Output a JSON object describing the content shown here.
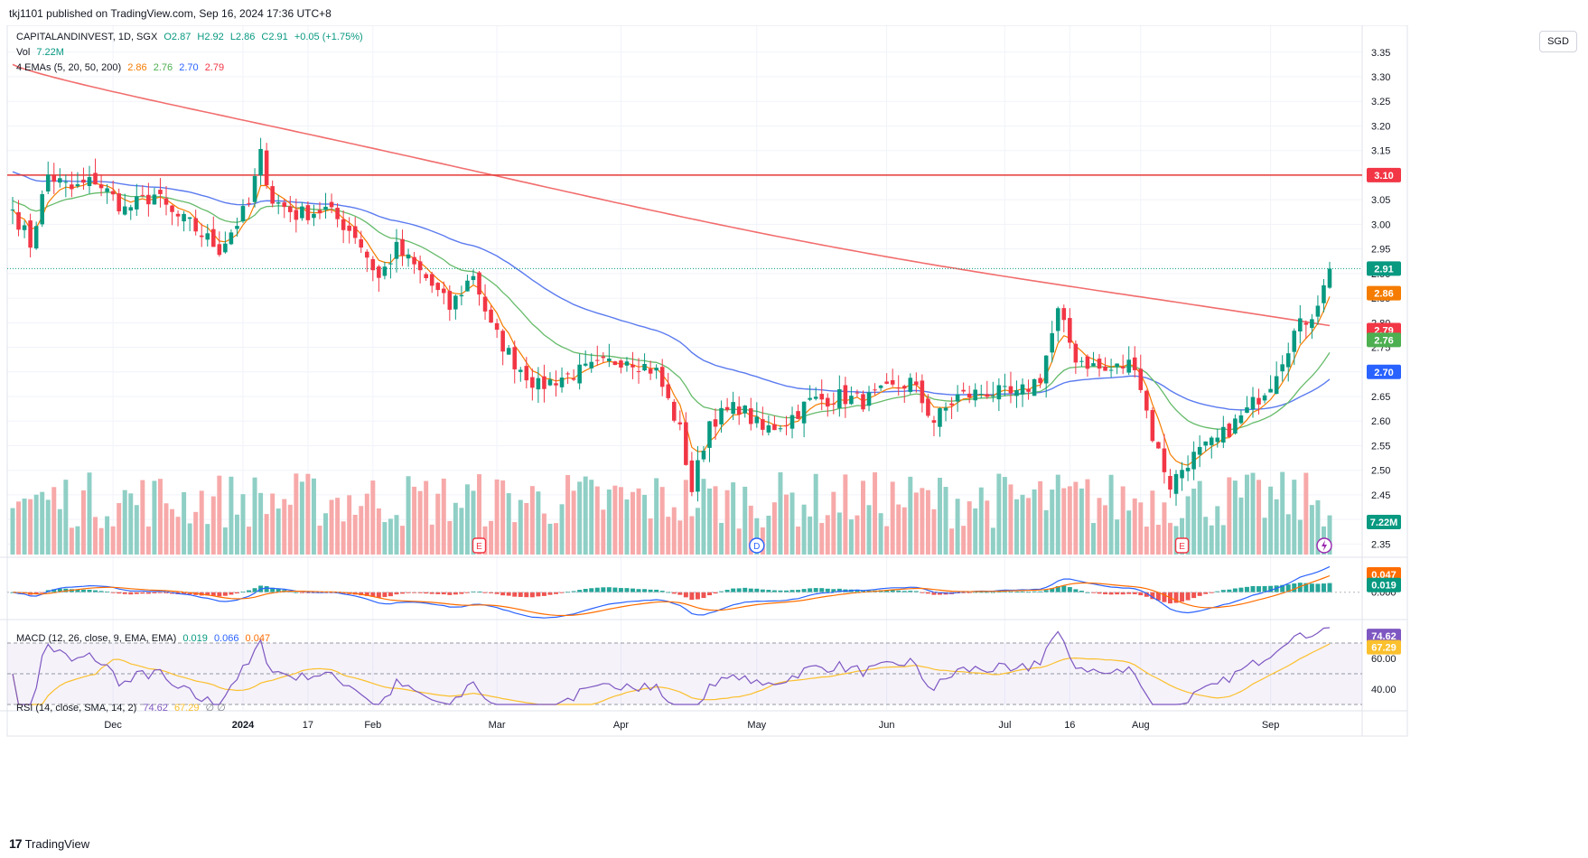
{
  "publisher_line": "tkj1101 published on TradingView.com, Sep 16, 2024 17:36 UTC+8",
  "currency": "SGD",
  "footer": {
    "brand": "TradingView"
  },
  "legend": {
    "symbol": "CAPITALANDINVEST, 1D, SGX",
    "open": "O2.87",
    "high": "H2.92",
    "low": "L2.86",
    "close": "C2.91",
    "change": "+0.05 (+1.75%)",
    "vol_label": "Vol",
    "vol_value": "7.22M",
    "ema_label": "4 EMAs (5, 20, 50, 200)",
    "ema5": "2.86",
    "ema20": "2.76",
    "ema50": "2.70",
    "ema200": "2.79",
    "macd_label": "MACD (12, 26, close, 9, EMA, EMA)",
    "macd_hist": "0.019",
    "macd_line": "0.066",
    "macd_signal": "0.047",
    "rsi_label": "RSI (14, close, SMA, 14, 2)",
    "rsi_value": "74.62",
    "rsi_ma": "67.29",
    "rsi_extra": "∅ ∅"
  },
  "colors": {
    "up": "#089981",
    "down": "#f23645",
    "vol_up": "#8fcfc5",
    "vol_down": "#f7a9a9",
    "ema5": "#f57c00",
    "ema20": "#66bb6a",
    "ema50": "#5b7bef",
    "ema200": "#f26d6d",
    "macd": "#2962ff",
    "signal": "#ff6d00",
    "rsi": "#7e57c2",
    "rsima": "#fbc02d",
    "hline": "#e53935"
  },
  "chart_data": {
    "type": "candlestick",
    "title": "CAPITALANDINVEST, 1D, SGX",
    "price_axis": {
      "ylim": [
        2.325,
        3.39
      ],
      "ticks": [
        "3.35",
        "3.30",
        "3.25",
        "3.20",
        "3.15",
        "3.10",
        "3.05",
        "3.00",
        "2.95",
        "2.90",
        "2.85",
        "2.80",
        "2.75",
        "2.70",
        "2.65",
        "2.60",
        "2.55",
        "2.50",
        "2.45",
        "2.40",
        "2.35"
      ]
    },
    "x_labels": [
      "Dec",
      "2024",
      "17",
      "Feb",
      "Mar",
      "Apr",
      "May",
      "Jun",
      "Jul",
      "16",
      "Aug",
      "Sep"
    ],
    "x_label_dates": [
      "2023-12-01",
      "2024-01-02",
      "2024-01-17",
      "2024-02-01",
      "2024-03-01",
      "2024-04-01",
      "2024-05-02",
      "2024-06-03",
      "2024-07-01",
      "2024-07-16",
      "2024-08-01",
      "2024-09-02"
    ],
    "date_range": [
      "2023-11-08",
      "2024-09-16"
    ],
    "horizontal_line": {
      "value": 3.1,
      "label": "3.10"
    },
    "last_price": {
      "value": 2.91,
      "label": "2.91"
    },
    "price_badges": [
      {
        "label": "2.91",
        "value": 2.91,
        "color": "#089981"
      },
      {
        "label": "2.86",
        "value": 2.86,
        "color": "#f57c00"
      },
      {
        "label": "2.79",
        "value": 2.785,
        "color": "#f23645"
      },
      {
        "label": "2.76",
        "value": 2.765,
        "color": "#4caf50"
      },
      {
        "label": "2.70",
        "value": 2.7,
        "color": "#2962ff"
      }
    ],
    "volume_badge": "7.22M",
    "close_anchors": [
      [
        "2023-11-08",
        3.03
      ],
      [
        "2023-11-13",
        2.96
      ],
      [
        "2023-11-16",
        3.1
      ],
      [
        "2023-11-22",
        3.07
      ],
      [
        "2023-11-28",
        3.09
      ],
      [
        "2023-12-05",
        3.03
      ],
      [
        "2023-12-12",
        3.06
      ],
      [
        "2023-12-15",
        3.02
      ],
      [
        "2023-12-20",
        3.0
      ],
      [
        "2023-12-27",
        2.95
      ],
      [
        "2024-01-03",
        3.04
      ],
      [
        "2024-01-05",
        3.14
      ],
      [
        "2024-01-09",
        3.05
      ],
      [
        "2024-01-15",
        3.02
      ],
      [
        "2024-01-22",
        3.03
      ],
      [
        "2024-01-29",
        2.98
      ],
      [
        "2024-02-02",
        2.89
      ],
      [
        "2024-02-07",
        2.95
      ],
      [
        "2024-02-14",
        2.89
      ],
      [
        "2024-02-20",
        2.83
      ],
      [
        "2024-02-26",
        2.9
      ],
      [
        "2024-02-29",
        2.79
      ],
      [
        "2024-03-06",
        2.72
      ],
      [
        "2024-03-12",
        2.67
      ],
      [
        "2024-03-18",
        2.69
      ],
      [
        "2024-03-26",
        2.71
      ],
      [
        "2024-04-02",
        2.73
      ],
      [
        "2024-04-09",
        2.7
      ],
      [
        "2024-04-15",
        2.58
      ],
      [
        "2024-04-17",
        2.46
      ],
      [
        "2024-04-22",
        2.6
      ],
      [
        "2024-04-29",
        2.63
      ],
      [
        "2024-05-03",
        2.58
      ],
      [
        "2024-05-09",
        2.6
      ],
      [
        "2024-05-15",
        2.64
      ],
      [
        "2024-05-22",
        2.65
      ],
      [
        "2024-05-28",
        2.64
      ],
      [
        "2024-06-03",
        2.66
      ],
      [
        "2024-06-07",
        2.68
      ],
      [
        "2024-06-13",
        2.6
      ],
      [
        "2024-06-19",
        2.65
      ],
      [
        "2024-06-26",
        2.66
      ],
      [
        "2024-07-03",
        2.65
      ],
      [
        "2024-07-09",
        2.69
      ],
      [
        "2024-07-12",
        2.82
      ],
      [
        "2024-07-17",
        2.73
      ],
      [
        "2024-07-24",
        2.7
      ],
      [
        "2024-07-31",
        2.72
      ],
      [
        "2024-08-05",
        2.57
      ],
      [
        "2024-08-08",
        2.47
      ],
      [
        "2024-08-13",
        2.52
      ],
      [
        "2024-08-20",
        2.56
      ],
      [
        "2024-08-27",
        2.62
      ],
      [
        "2024-09-02",
        2.68
      ],
      [
        "2024-09-06",
        2.78
      ],
      [
        "2024-09-11",
        2.82
      ],
      [
        "2024-09-13",
        2.87
      ],
      [
        "2024-09-16",
        2.91
      ]
    ],
    "events": [
      {
        "label": "E",
        "date": "2024-02-27"
      },
      {
        "label": "D",
        "date": "2024-05-02"
      },
      {
        "label": "E",
        "date": "2024-08-12"
      }
    ],
    "macd": {
      "ylim": [
        -0.07,
        0.09
      ],
      "zero_label": "0.000",
      "badges": [
        {
          "label": "0.047",
          "value": 0.047,
          "color": "#ff6d00"
        },
        {
          "label": "0.019",
          "value": 0.019,
          "color": "#089981"
        }
      ]
    },
    "rsi": {
      "ylim": [
        30,
        80
      ],
      "ticks": [
        "60.00",
        "40.00"
      ],
      "bands": [
        70,
        50,
        30
      ],
      "badges": [
        {
          "label": "74.62",
          "value": 74.62,
          "color": "#7e57c2"
        },
        {
          "label": "67.29",
          "value": 67.29,
          "color": "#fbc02d"
        }
      ]
    }
  }
}
